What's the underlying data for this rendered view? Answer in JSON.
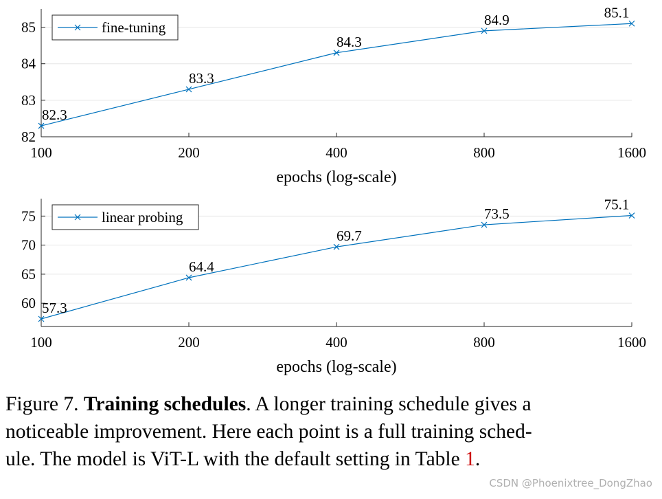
{
  "chart_data": [
    {
      "type": "line",
      "x": [
        100,
        200,
        400,
        800,
        1600
      ],
      "xscale": "log",
      "xlabel": "epochs (log-scale)",
      "xticks": [
        "100",
        "200",
        "400",
        "800",
        "1600"
      ],
      "ylim": [
        82,
        85.5
      ],
      "yticks": [
        "82",
        "83",
        "84",
        "85"
      ],
      "grid": "horizontal",
      "legend": "top-left",
      "series": [
        {
          "name": "fine-tuning",
          "color": "#0072BD",
          "marker": "x",
          "values": [
            82.3,
            83.3,
            84.3,
            84.9,
            85.1
          ],
          "labels": [
            "82.3",
            "83.3",
            "84.3",
            "84.9",
            "85.1"
          ]
        }
      ]
    },
    {
      "type": "line",
      "x": [
        100,
        200,
        400,
        800,
        1600
      ],
      "xscale": "log",
      "xlabel": "epochs (log-scale)",
      "xticks": [
        "100",
        "200",
        "400",
        "800",
        "1600"
      ],
      "ylim": [
        56,
        78
      ],
      "yticks": [
        "60",
        "65",
        "70",
        "75"
      ],
      "grid": "horizontal",
      "legend": "top-left",
      "series": [
        {
          "name": "linear probing",
          "color": "#0072BD",
          "marker": "x",
          "values": [
            57.3,
            64.4,
            69.7,
            73.5,
            75.1
          ],
          "labels": [
            "57.3",
            "64.4",
            "69.7",
            "73.5",
            "75.1"
          ]
        }
      ]
    }
  ],
  "caption": {
    "prefix": "Figure 7. ",
    "bold": "Training schedules",
    "text_line1": ". A longer training schedule gives a",
    "line2": "noticeable improvement. Here each point is a full training sched-",
    "line3_start": "ule. The model is ViT-L with the default setting in Table ",
    "line3_ref": "1",
    "line3_end": "."
  },
  "watermark": "CSDN @Phoenixtree_DongZhao"
}
